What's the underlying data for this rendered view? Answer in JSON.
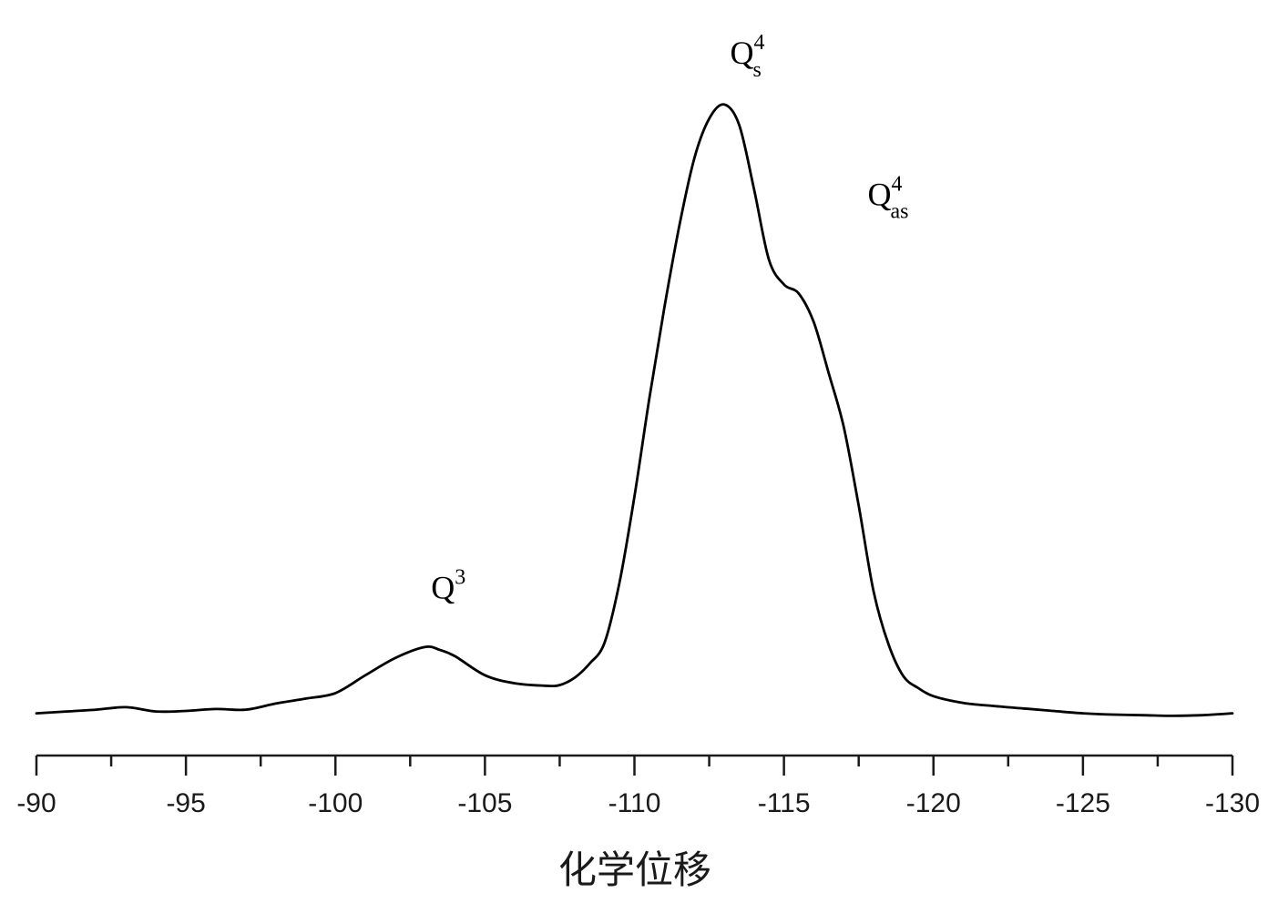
{
  "chart_data": {
    "type": "line",
    "title": "",
    "xlabel": "化学位移",
    "ylabel": "",
    "xlim": [
      -90,
      -130
    ],
    "x_reversed": true,
    "y_axis_shown": false,
    "grid": false,
    "legend": "none",
    "x_ticks": [
      -90,
      -95,
      -100,
      -105,
      -110,
      -115,
      -120,
      -125,
      -130
    ],
    "x_tick_labels": [
      "-90",
      "-95",
      "-100",
      "-105",
      "-110",
      "-115",
      "-120",
      "-125",
      "-130"
    ],
    "x_minor_step": 2.5,
    "line_color": "#000000",
    "series": [
      {
        "x": [
          -90,
          -91,
          -92,
          -93,
          -94,
          -95,
          -96,
          -97,
          -98,
          -99,
          -100,
          -101,
          -102,
          -103,
          -103.5,
          -104,
          -105,
          -106,
          -107,
          -107.5,
          -108,
          -108.5,
          -109,
          -109.5,
          -110,
          -110.5,
          -111,
          -111.5,
          -112,
          -112.5,
          -113,
          -113.5,
          -114,
          -114.5,
          -115,
          -115.5,
          -116,
          -116.5,
          -117,
          -117.5,
          -118,
          -118.5,
          -119,
          -119.5,
          -120,
          -121,
          -122,
          -123,
          -124,
          -125,
          -126,
          -127,
          -128,
          -129,
          -130
        ],
        "y": [
          0.2,
          0.5,
          0.8,
          1.2,
          0.5,
          0.6,
          0.9,
          0.8,
          1.8,
          2.6,
          3.5,
          6.4,
          9.2,
          11.0,
          10.5,
          9.5,
          6.4,
          5.1,
          4.7,
          4.8,
          6.0,
          8.3,
          11.7,
          21.5,
          35.5,
          51.5,
          66.2,
          79.5,
          90.5,
          97.0,
          99.3,
          96.0,
          85.5,
          74.0,
          70.0,
          68.5,
          63.8,
          55.5,
          46.8,
          34.0,
          20.0,
          11.4,
          6.2,
          4.3,
          3.0,
          1.9,
          1.4,
          1.0,
          0.6,
          0.2,
          0.0,
          -0.1,
          -0.2,
          -0.1,
          0.2
        ]
      }
    ],
    "ylim": [
      0,
      100
    ],
    "annotations": [
      {
        "base": "Q",
        "sup": "3",
        "sub": "",
        "x": -103.2,
        "y": 13
      },
      {
        "base": "Q",
        "sup": "4",
        "sub": "s",
        "x": -113.2,
        "y": 100
      },
      {
        "base": "Q",
        "sup": "4",
        "sub": "as",
        "x": -117.8,
        "y": 77
      }
    ]
  }
}
